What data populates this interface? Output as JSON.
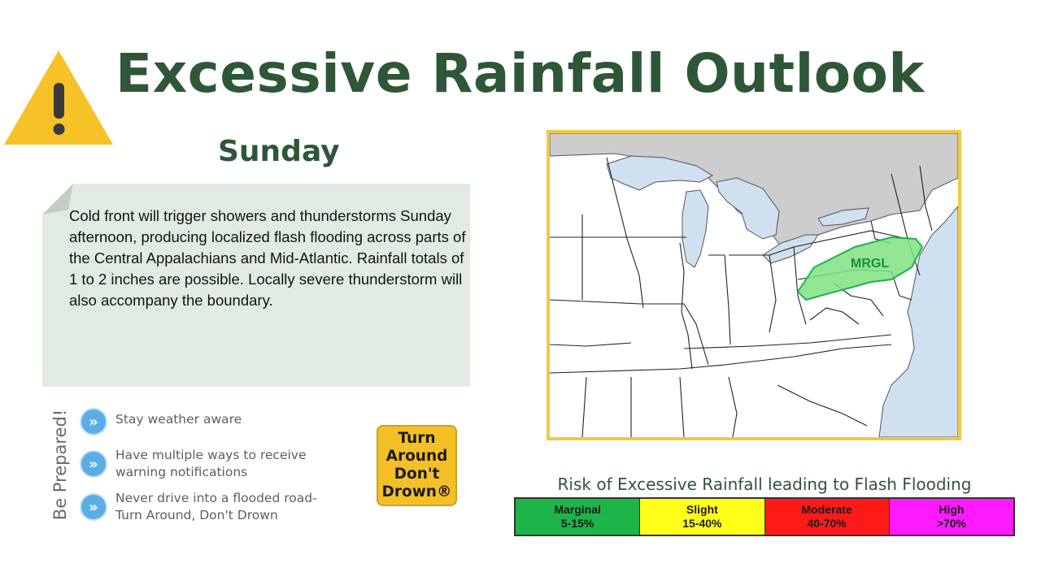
{
  "header": {
    "title": "Excessive Rainfall Outlook",
    "day": "Sunday"
  },
  "summary": {
    "text": "Cold front will trigger showers and thunderstorms Sunday afternoon, producing localized flash flooding across parts of the Central Appalachians and Mid-Atlantic. Rainfall totals of 1 to 2 inches are possible. Locally severe thunderstorm will also accompany the boundary."
  },
  "prepared": {
    "heading": "Be Prepared!",
    "tips": [
      {
        "icon": "double-chevron-right-icon",
        "text": "Stay weather aware"
      },
      {
        "icon": "double-chevron-right-icon",
        "text": "Have multiple ways to receive warning notifications"
      },
      {
        "icon": "double-chevron-right-icon",
        "text": "Never drive into a flooded road- Turn Around, Don't Drown"
      }
    ]
  },
  "badge": {
    "line1": "Turn",
    "line2": "Around",
    "line3": "Don't",
    "line4": "Drown®"
  },
  "map": {
    "risk_label": "MRGL"
  },
  "legend": {
    "title": "Risk of Excessive Rainfall leading to Flash Flooding",
    "levels": [
      {
        "name": "Marginal",
        "range": "5-15%",
        "color": "#1db44a"
      },
      {
        "name": "Slight",
        "range": "15-40%",
        "color": "#ffff1a"
      },
      {
        "name": "Moderate",
        "range": "40-70%",
        "color": "#ff1a1a"
      },
      {
        "name": "High",
        "range": ">70%",
        "color": "#ff1aff"
      }
    ]
  },
  "colors": {
    "title": "#2e5737",
    "note_bg": "#e1ebe1",
    "frame": "#f2c842",
    "water": "#cfe0f1",
    "canada": "#cdcdcd",
    "marginal_fill": "#7fe07f"
  }
}
